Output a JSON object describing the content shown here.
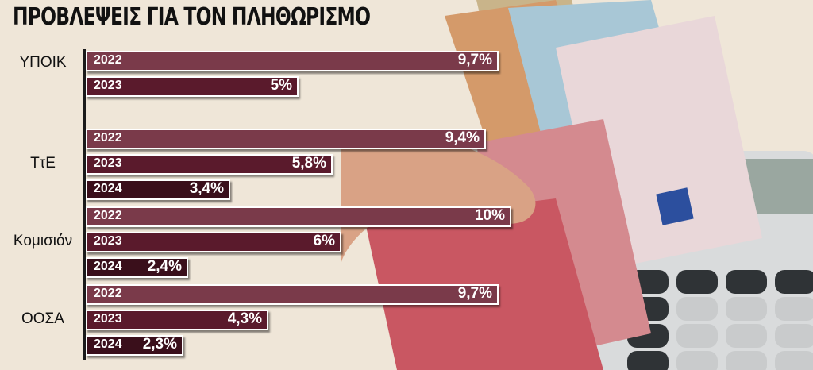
{
  "title": "ΠΡΟΒΛΕΨΕΙΣ ΓΙΑ ΤΟΝ ΠΛΗΘΩΡΙΣΜΟ",
  "chart_data": {
    "type": "bar",
    "orientation": "horizontal",
    "title": "ΠΡΟΒΛΕΨΕΙΣ ΓΙΑ ΤΟΝ ΠΛΗΘΩΡΙΣΜΟ",
    "xlim": [
      0,
      10
    ],
    "grid": false,
    "groups": [
      {
        "label": "ΥΠΟΙΚ",
        "bars": [
          {
            "year": "2022",
            "value": 9.7,
            "label": "9,7%"
          },
          {
            "year": "2023",
            "value": 5,
            "label": "5%"
          }
        ]
      },
      {
        "label": "ΤτΕ",
        "bars": [
          {
            "year": "2022",
            "value": 9.4,
            "label": "9,4%"
          },
          {
            "year": "2023",
            "value": 5.8,
            "label": "5,8%"
          },
          {
            "year": "2024",
            "value": 3.4,
            "label": "3,4%"
          }
        ]
      },
      {
        "label": "Κομισιόν",
        "bars": [
          {
            "year": "2022",
            "value": 10,
            "label": "10%"
          },
          {
            "year": "2023",
            "value": 6,
            "label": "6%"
          },
          {
            "year": "2024",
            "value": 2.4,
            "label": "2,4%"
          }
        ]
      },
      {
        "label": "ΟΟΣΑ",
        "bars": [
          {
            "year": "2022",
            "value": 9.7,
            "label": "9,7%"
          },
          {
            "year": "2023",
            "value": 4.3,
            "label": "4,3%"
          },
          {
            "year": "2024",
            "value": 2.3,
            "label": "2,3%"
          }
        ]
      }
    ]
  },
  "colors": {
    "bar_2022": "#7a3a4a",
    "bar_2023": "#5a1a2c",
    "bar_2024": "#3a0f1b",
    "background": "#efe6d8"
  },
  "background_image": "euro-banknotes-and-calculator"
}
